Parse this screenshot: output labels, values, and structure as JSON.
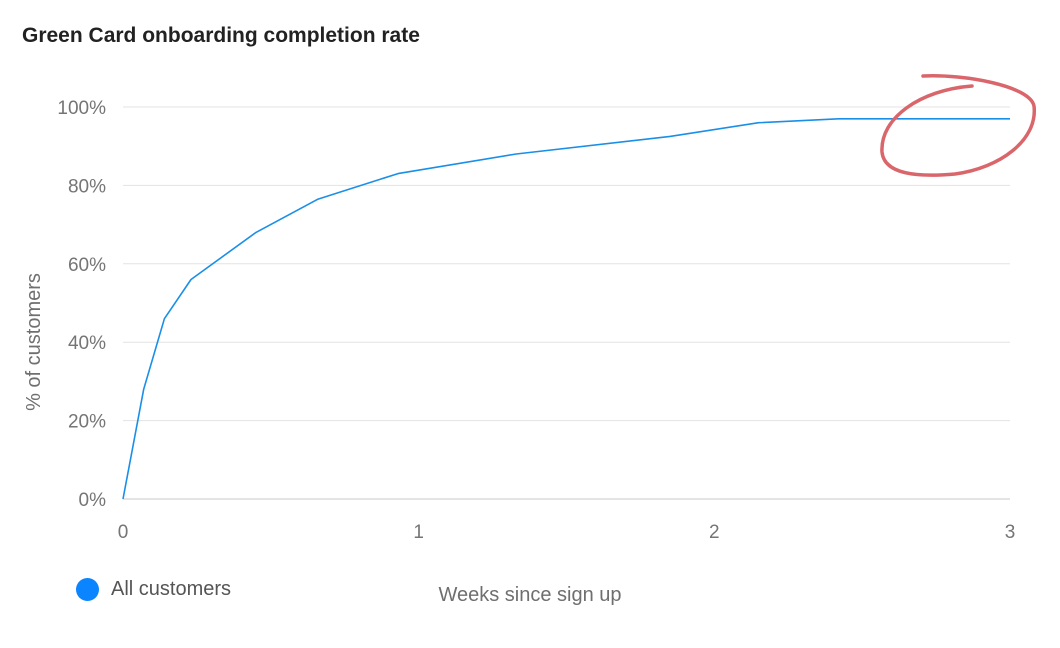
{
  "chart_data": {
    "type": "line",
    "title": "Green Card onboarding completion rate",
    "xlabel": "Weeks since sign up",
    "ylabel": "% of customers",
    "xlim": [
      0,
      3
    ],
    "ylim": [
      0,
      100
    ],
    "x_ticks": [
      "0",
      "1",
      "2",
      "3"
    ],
    "y_ticks": [
      "0%",
      "20%",
      "40%",
      "60%",
      "80%",
      "100%"
    ],
    "grid": true,
    "legend": "bottom-left",
    "series": [
      {
        "name": "All customers",
        "color": "#1a8fe8",
        "x": [
          0,
          0.07,
          0.14,
          0.23,
          0.45,
          0.66,
          0.93,
          1.33,
          1.85,
          2.15,
          2.42,
          3.0
        ],
        "y": [
          0,
          28,
          46,
          56,
          68,
          76.5,
          83,
          88,
          92.5,
          96,
          97,
          97
        ]
      }
    ]
  },
  "legend_marker_color": "#0a84ff",
  "annotation_color": "#d9666b"
}
